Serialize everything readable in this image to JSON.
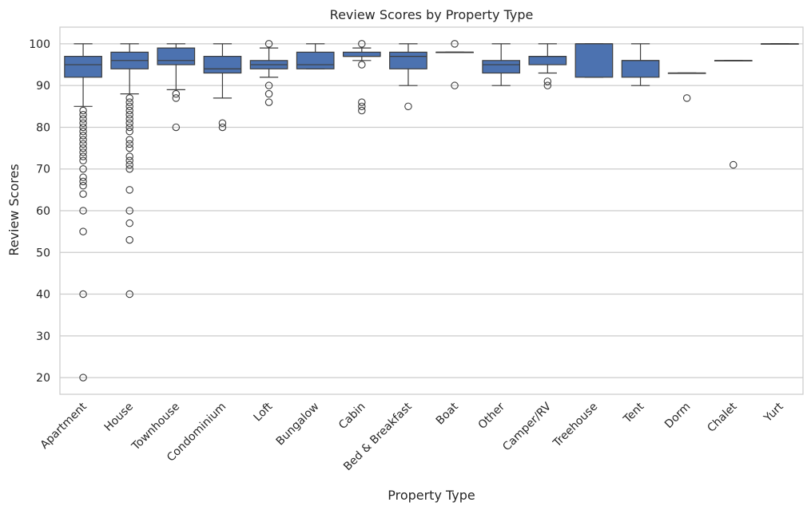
{
  "chart_data": {
    "type": "box",
    "title": "Review Scores by Property Type",
    "xlabel": "Property Type",
    "ylabel": "Review Scores",
    "ylim": [
      16,
      104
    ],
    "yticks": [
      20,
      30,
      40,
      50,
      60,
      70,
      80,
      90,
      100
    ],
    "grid": "horizontal",
    "box_color": "#4c72b0",
    "categories": [
      "Apartment",
      "House",
      "Townhouse",
      "Condominium",
      "Loft",
      "Bungalow",
      "Cabin",
      "Bed & Breakfast",
      "Boat",
      "Other",
      "Camper/RV",
      "Treehouse",
      "Tent",
      "Dorm",
      "Chalet",
      "Yurt"
    ],
    "boxes": [
      {
        "category": "Apartment",
        "whislo": 85,
        "q1": 92,
        "median": 95,
        "q3": 97,
        "whishi": 100,
        "fliers": [
          84,
          83,
          82,
          81,
          80,
          79,
          78,
          77,
          76,
          75,
          74,
          73,
          72,
          70,
          68,
          67,
          66,
          64,
          60,
          55,
          40,
          20
        ]
      },
      {
        "category": "House",
        "whislo": 88,
        "q1": 94,
        "median": 96,
        "q3": 98,
        "whishi": 100,
        "fliers": [
          87,
          86,
          85,
          84,
          83,
          82,
          81,
          80,
          79,
          77,
          76,
          75,
          73,
          72,
          71,
          70,
          65,
          60,
          57,
          53,
          40
        ]
      },
      {
        "category": "Townhouse",
        "whislo": 89,
        "q1": 95,
        "median": 96,
        "q3": 99,
        "whishi": 100,
        "fliers": [
          88,
          87,
          80
        ]
      },
      {
        "category": "Condominium",
        "whislo": 87,
        "q1": 93,
        "median": 94,
        "q3": 97,
        "whishi": 100,
        "fliers": [
          81,
          80
        ]
      },
      {
        "category": "Loft",
        "whislo": 92,
        "q1": 94,
        "median": 95,
        "q3": 96,
        "whishi": 99,
        "fliers": [
          100,
          90,
          88,
          86
        ]
      },
      {
        "category": "Bungalow",
        "whislo": 94,
        "q1": 94,
        "median": 95,
        "q3": 98,
        "whishi": 100,
        "fliers": []
      },
      {
        "category": "Cabin",
        "whislo": 96,
        "q1": 97,
        "median": 97,
        "q3": 98,
        "whishi": 99,
        "fliers": [
          100,
          95,
          86,
          85,
          84
        ]
      },
      {
        "category": "Bed & Breakfast",
        "whislo": 90,
        "q1": 94,
        "median": 97,
        "q3": 98,
        "whishi": 100,
        "fliers": [
          85
        ]
      },
      {
        "category": "Boat",
        "whislo": 98,
        "q1": 98,
        "median": 98,
        "q3": 98,
        "whishi": 98,
        "fliers": [
          100,
          90
        ]
      },
      {
        "category": "Other",
        "whislo": 90,
        "q1": 93,
        "median": 95,
        "q3": 96,
        "whishi": 100,
        "fliers": []
      },
      {
        "category": "Camper/RV",
        "whislo": 93,
        "q1": 95,
        "median": 97,
        "q3": 97,
        "whishi": 100,
        "fliers": [
          91,
          90
        ]
      },
      {
        "category": "Treehouse",
        "whislo": 92,
        "q1": 92,
        "median": 100,
        "q3": 100,
        "whishi": 100,
        "fliers": []
      },
      {
        "category": "Tent",
        "whislo": 90,
        "q1": 92,
        "median": 96,
        "q3": 96,
        "whishi": 100,
        "fliers": []
      },
      {
        "category": "Dorm",
        "whislo": 93,
        "q1": 93,
        "median": 93,
        "q3": 93,
        "whishi": 93,
        "fliers": [
          87
        ]
      },
      {
        "category": "Chalet",
        "whislo": 96,
        "q1": 96,
        "median": 96,
        "q3": 96,
        "whishi": 96,
        "fliers": [
          71
        ]
      },
      {
        "category": "Yurt",
        "whislo": 100,
        "q1": 100,
        "median": 100,
        "q3": 100,
        "whishi": 100,
        "fliers": []
      }
    ]
  }
}
